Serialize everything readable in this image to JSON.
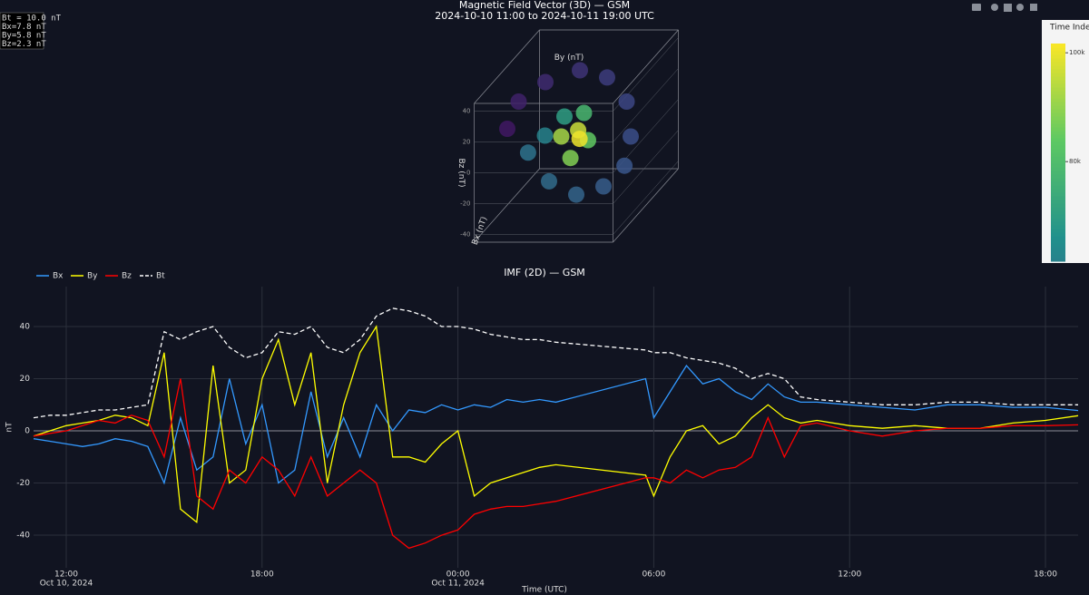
{
  "readout": [
    {
      "text": "Bt = 10.0 nT",
      "color": "#ffffff"
    },
    {
      "text": "Bx=7.8 nT",
      "color": "#3399ff"
    },
    {
      "text": "By=5.8 nT",
      "color": "#ffff00"
    },
    {
      "text": "Bz=2.3 nT",
      "color": "#ff2020"
    }
  ],
  "chart_data": [
    {
      "type": "scatter3d",
      "title": "Magnetic Field Vector (3D) — GSM",
      "subtitle": "2024-10-10 11:00 to 2024-10-11 19:00 UTC",
      "xlabel": "Bx (nT)",
      "ylabel": "By (nT)",
      "zlabel": "Bz (nT)",
      "x": [
        10,
        5,
        0,
        -5,
        0,
        5,
        10,
        8,
        5,
        0,
        -5,
        -8,
        -10,
        -5,
        0,
        5,
        8,
        10,
        8,
        7.8
      ],
      "y": [
        -40,
        -35,
        -20,
        0,
        20,
        35,
        40,
        35,
        20,
        0,
        -20,
        -35,
        -25,
        -10,
        5,
        10,
        0,
        -5,
        5,
        5.8
      ],
      "z": [
        10,
        25,
        35,
        40,
        38,
        25,
        5,
        -15,
        -30,
        -38,
        -32,
        -15,
        -5,
        10,
        15,
        0,
        -10,
        5,
        8,
        2.3
      ],
      "t": [
        35000,
        37000,
        39000,
        41000,
        43000,
        45000,
        47000,
        49000,
        51000,
        53000,
        55000,
        57000,
        62000,
        70000,
        78000,
        84000,
        88000,
        92000,
        96000,
        100000
      ],
      "xlim": [
        -45,
        45
      ],
      "ylim": [
        -45,
        45
      ],
      "zlim": [
        -45,
        45
      ],
      "zticks": [
        -40,
        -20,
        0,
        20,
        40
      ],
      "colorscale": [
        "#440154",
        "#3b528b",
        "#21918c",
        "#5ec962",
        "#fde725"
      ],
      "cmin": 30000,
      "cmax": 101700,
      "colorbar": {
        "title": "Time Index",
        "lim": [
          61700,
          101700
        ],
        "ticks": [
          {
            "value": 80000,
            "label": "80k"
          },
          {
            "value": 100000,
            "label": "100k"
          }
        ]
      }
    },
    {
      "type": "line",
      "title": "IMF (2D) — GSM",
      "xlabel": "Time (UTC)",
      "ylabel": "nT",
      "x": [
        "2024-10-10 11:00",
        "2024-10-10 11:30",
        "2024-10-10 12:00",
        "2024-10-10 12:30",
        "2024-10-10 13:00",
        "2024-10-10 13:30",
        "2024-10-10 14:00",
        "2024-10-10 14:30",
        "2024-10-10 15:00",
        "2024-10-10 15:30",
        "2024-10-10 16:00",
        "2024-10-10 16:30",
        "2024-10-10 17:00",
        "2024-10-10 17:30",
        "2024-10-10 18:00",
        "2024-10-10 18:30",
        "2024-10-10 19:00",
        "2024-10-10 19:30",
        "2024-10-10 20:00",
        "2024-10-10 20:30",
        "2024-10-10 21:00",
        "2024-10-10 21:30",
        "2024-10-10 22:00",
        "2024-10-10 22:30",
        "2024-10-10 23:00",
        "2024-10-10 23:30",
        "2024-10-11 00:00",
        "2024-10-11 00:30",
        "2024-10-11 01:00",
        "2024-10-11 01:30",
        "2024-10-11 02:00",
        "2024-10-11 02:30",
        "2024-10-11 03:00",
        "2024-10-11 05:45",
        "2024-10-11 06:00",
        "2024-10-11 06:30",
        "2024-10-11 07:00",
        "2024-10-11 07:30",
        "2024-10-11 08:00",
        "2024-10-11 08:30",
        "2024-10-11 09:00",
        "2024-10-11 09:30",
        "2024-10-11 10:00",
        "2024-10-11 10:30",
        "2024-10-11 11:00",
        "2024-10-11 12:00",
        "2024-10-11 13:00",
        "2024-10-11 14:00",
        "2024-10-11 15:00",
        "2024-10-11 16:00",
        "2024-10-11 17:00",
        "2024-10-11 18:00",
        "2024-10-11 19:00"
      ],
      "series": [
        {
          "name": "Bx",
          "color": "#3399ff",
          "values": [
            -3,
            -4,
            -5,
            -6,
            -5,
            -3,
            -4,
            -6,
            -20,
            5,
            -15,
            -10,
            20,
            -5,
            10,
            -20,
            -15,
            15,
            -10,
            5,
            -10,
            10,
            0,
            8,
            7,
            10,
            8,
            10,
            9,
            12,
            11,
            12,
            11,
            20,
            5,
            15,
            25,
            18,
            20,
            15,
            12,
            18,
            13,
            11,
            11,
            10,
            9,
            8,
            10,
            10,
            9,
            9,
            7.8
          ]
        },
        {
          "name": "By",
          "color": "#ffff00",
          "values": [
            -2,
            0,
            2,
            3,
            4,
            6,
            5,
            2,
            30,
            -30,
            -35,
            25,
            -20,
            -15,
            20,
            35,
            10,
            30,
            -20,
            10,
            30,
            40,
            -10,
            -10,
            -12,
            -5,
            0,
            -25,
            -20,
            -18,
            -16,
            -14,
            -13,
            -17,
            -25,
            -10,
            0,
            2,
            -5,
            -2,
            5,
            10,
            5,
            3,
            4,
            2,
            1,
            2,
            1,
            1,
            3,
            4,
            5.8
          ]
        },
        {
          "name": "Bz",
          "color": "#ff0000",
          "values": [
            -2,
            -1,
            0,
            2,
            4,
            3,
            6,
            4,
            -10,
            20,
            -25,
            -30,
            -15,
            -20,
            -10,
            -15,
            -25,
            -10,
            -25,
            -20,
            -15,
            -20,
            -40,
            -45,
            -43,
            -40,
            -38,
            -32,
            -30,
            -29,
            -29,
            -28,
            -27,
            -18,
            -18,
            -20,
            -15,
            -18,
            -15,
            -14,
            -10,
            5,
            -10,
            2,
            3,
            0,
            -2,
            0,
            1,
            1,
            2,
            2,
            2.3
          ]
        },
        {
          "name": "Bt",
          "color": "#ffffff",
          "dash": true,
          "values": [
            5,
            6,
            6,
            7,
            8,
            8,
            9,
            10,
            38,
            35,
            38,
            40,
            32,
            28,
            30,
            38,
            37,
            40,
            32,
            30,
            35,
            44,
            47,
            46,
            44,
            40,
            40,
            39,
            37,
            36,
            35,
            35,
            34,
            31,
            30,
            30,
            28,
            27,
            26,
            24,
            20,
            22,
            20,
            13,
            12,
            11,
            10,
            10,
            11,
            11,
            10,
            10,
            10
          ]
        }
      ],
      "xlim": [
        "2024-10-10 11:00",
        "2024-10-11 19:00"
      ],
      "xticks": [
        {
          "value": "2024-10-10 12:00",
          "label": "12:00",
          "date": "Oct 10, 2024"
        },
        {
          "value": "2024-10-10 18:00",
          "label": "18:00"
        },
        {
          "value": "2024-10-11 00:00",
          "label": "00:00",
          "date": "Oct 11, 2024"
        },
        {
          "value": "2024-10-11 06:00",
          "label": "06:00"
        },
        {
          "value": "2024-10-11 12:00",
          "label": "12:00"
        },
        {
          "value": "2024-10-11 18:00",
          "label": "18:00"
        }
      ],
      "ylim": [
        -52.5,
        55.3
      ],
      "yticks": [
        -40,
        -20,
        0,
        20,
        40
      ],
      "grid": true
    }
  ]
}
